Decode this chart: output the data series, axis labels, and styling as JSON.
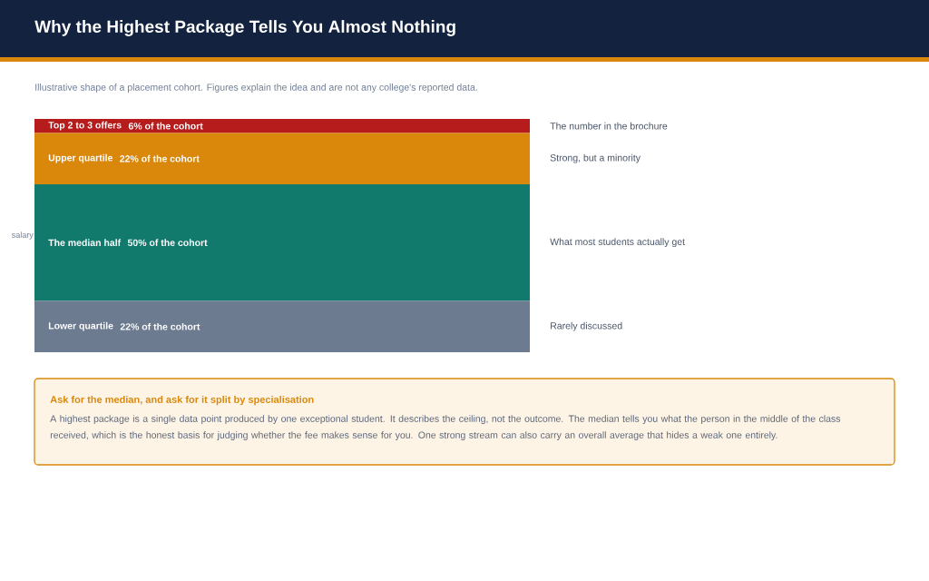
{
  "chart_data": {
    "type": "bar",
    "stacked": true,
    "title": "Why the Highest Package Tells You Almost Nothing",
    "subtitle": "Illustrative shape of a placement cohort. Figures explain the idea and are not any college's reported data.",
    "ylabel": "salary",
    "categories": [
      null
    ],
    "ylim": [
      0,
      100
    ],
    "tick_labels": false,
    "series": [
      {
        "name": "Lower quartile",
        "color": "#6d7b91",
        "values": [
          22
        ],
        "value_labels": [
          "22% of the cohort"
        ]
      },
      {
        "name": "The median half",
        "color": "#127a6d",
        "values": [
          50
        ],
        "value_labels": [
          "50% of the cohort"
        ]
      },
      {
        "name": "Upper quartile",
        "color": "#d9880c",
        "values": [
          22
        ],
        "value_labels": [
          "22% of the cohort"
        ]
      },
      {
        "name": "Top 2 to 3 offers",
        "color": "#b71c1c",
        "values": [
          6
        ],
        "value_labels": [
          "6% of the cohort"
        ]
      }
    ],
    "annotations": [
      "The number in the brochure",
      "Strong, but a minority",
      "What most students actually get",
      "Rarely discussed",
      "Ask for the median, and ask for it split by specialisation",
      "A highest package is a single data point produced by one exceptional student. It describes the ceiling, not the outcome. The median tells you what the person in the middle of the class received, which is the honest basis for judging whether the fee makes sense for you. One strong stream can also carry an overall average that hides a weak one entirely."
    ]
  }
}
